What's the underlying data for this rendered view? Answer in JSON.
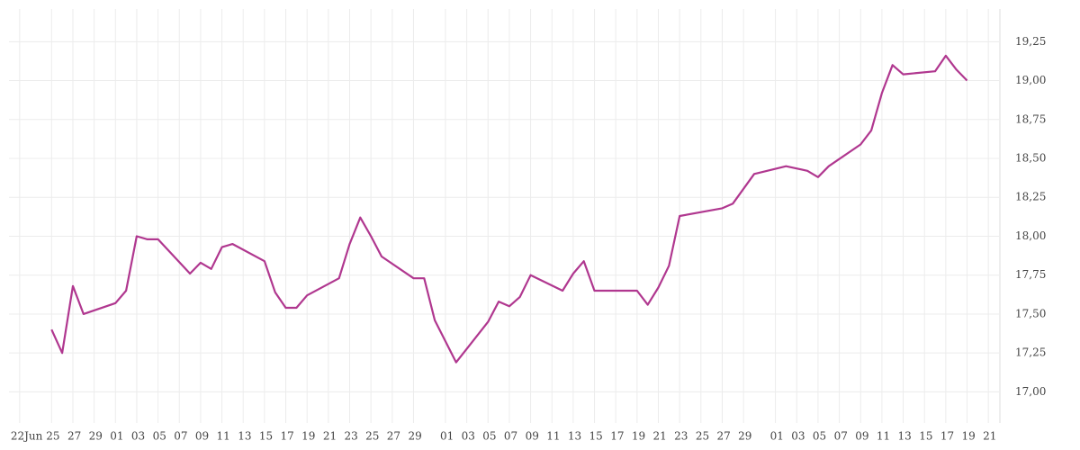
{
  "chart_data": {
    "type": "line",
    "x": [
      "06-25",
      "06-26",
      "06-27",
      "06-28",
      "07-01",
      "07-02",
      "07-03",
      "07-04",
      "07-05",
      "07-08",
      "07-09",
      "07-10",
      "07-11",
      "07-12",
      "07-15",
      "07-16",
      "07-17",
      "07-18",
      "07-19",
      "07-22",
      "07-23",
      "07-24",
      "07-25",
      "07-26",
      "07-29",
      "07-30",
      "07-31",
      "08-02",
      "08-05",
      "08-06",
      "08-07",
      "08-08",
      "08-09",
      "08-12",
      "08-13",
      "08-14",
      "08-15",
      "08-19",
      "08-20",
      "08-21",
      "08-22",
      "08-23",
      "08-27",
      "08-28",
      "08-30",
      "09-02",
      "09-04",
      "09-05",
      "09-06",
      "09-09",
      "09-10",
      "09-11",
      "09-12",
      "09-13",
      "09-16",
      "09-17",
      "09-18",
      "09-19"
    ],
    "series": [
      {
        "color": "#b0378f",
        "values": [
          17.4,
          17.25,
          17.68,
          17.5,
          17.57,
          17.65,
          18.0,
          17.98,
          17.98,
          17.76,
          17.83,
          17.79,
          17.93,
          17.95,
          17.84,
          17.64,
          17.54,
          17.54,
          17.62,
          17.73,
          17.95,
          18.12,
          18.0,
          17.87,
          17.73,
          17.73,
          17.46,
          17.19,
          17.45,
          17.58,
          17.55,
          17.61,
          17.75,
          17.65,
          17.76,
          17.84,
          17.65,
          17.65,
          17.56,
          17.67,
          17.81,
          18.13,
          18.18,
          18.21,
          18.4,
          18.45,
          18.42,
          18.38,
          18.45,
          18.59,
          18.68,
          18.92,
          19.1,
          19.04,
          19.06,
          19.16,
          19.07,
          19.0
        ]
      }
    ],
    "xlim": [
      "06-21",
      "09-22"
    ],
    "xticks": [
      {
        "value": "06-22",
        "label": "22Jun"
      },
      {
        "value": "06-25",
        "label": "25"
      },
      {
        "value": "06-27",
        "label": "27"
      },
      {
        "value": "06-29",
        "label": "29"
      },
      {
        "value": "07-01",
        "label": "01"
      },
      {
        "value": "07-03",
        "label": "03"
      },
      {
        "value": "07-05",
        "label": "05"
      },
      {
        "value": "07-07",
        "label": "07"
      },
      {
        "value": "07-09",
        "label": "09"
      },
      {
        "value": "07-11",
        "label": "11"
      },
      {
        "value": "07-13",
        "label": "13"
      },
      {
        "value": "07-15",
        "label": "15"
      },
      {
        "value": "07-17",
        "label": "17"
      },
      {
        "value": "07-19",
        "label": "19"
      },
      {
        "value": "07-21",
        "label": "21"
      },
      {
        "value": "07-23",
        "label": "23"
      },
      {
        "value": "07-25",
        "label": "25"
      },
      {
        "value": "07-27",
        "label": "27"
      },
      {
        "value": "07-29",
        "label": "29"
      },
      {
        "value": "08-01",
        "label": "01"
      },
      {
        "value": "08-03",
        "label": "03"
      },
      {
        "value": "08-05",
        "label": "05"
      },
      {
        "value": "08-07",
        "label": "07"
      },
      {
        "value": "08-09",
        "label": "09"
      },
      {
        "value": "08-11",
        "label": "11"
      },
      {
        "value": "08-13",
        "label": "13"
      },
      {
        "value": "08-15",
        "label": "15"
      },
      {
        "value": "08-17",
        "label": "17"
      },
      {
        "value": "08-19",
        "label": "19"
      },
      {
        "value": "08-21",
        "label": "21"
      },
      {
        "value": "08-23",
        "label": "23"
      },
      {
        "value": "08-25",
        "label": "25"
      },
      {
        "value": "08-27",
        "label": "27"
      },
      {
        "value": "08-29",
        "label": "29"
      },
      {
        "value": "09-01",
        "label": "01"
      },
      {
        "value": "09-03",
        "label": "03"
      },
      {
        "value": "09-05",
        "label": "05"
      },
      {
        "value": "09-07",
        "label": "07"
      },
      {
        "value": "09-09",
        "label": "09"
      },
      {
        "value": "09-11",
        "label": "11"
      },
      {
        "value": "09-13",
        "label": "13"
      },
      {
        "value": "09-15",
        "label": "15"
      },
      {
        "value": "09-17",
        "label": "17"
      },
      {
        "value": "09-19",
        "label": "19"
      },
      {
        "value": "09-21",
        "label": "21"
      }
    ],
    "ylim": [
      16.8,
      19.46
    ],
    "yticks": [
      {
        "value": 17,
        "label": "17,00"
      },
      {
        "value": 17.25,
        "label": "17,25"
      },
      {
        "value": 17.5,
        "label": "17,50"
      },
      {
        "value": 17.75,
        "label": "17,75"
      },
      {
        "value": 18,
        "label": "18,00"
      },
      {
        "value": 18.25,
        "label": "18,25"
      },
      {
        "value": 18.5,
        "label": "18,50"
      },
      {
        "value": 18.75,
        "label": "18,75"
      },
      {
        "value": 19,
        "label": "19,00"
      },
      {
        "value": 19.25,
        "label": "19,25"
      }
    ],
    "grid": true
  }
}
